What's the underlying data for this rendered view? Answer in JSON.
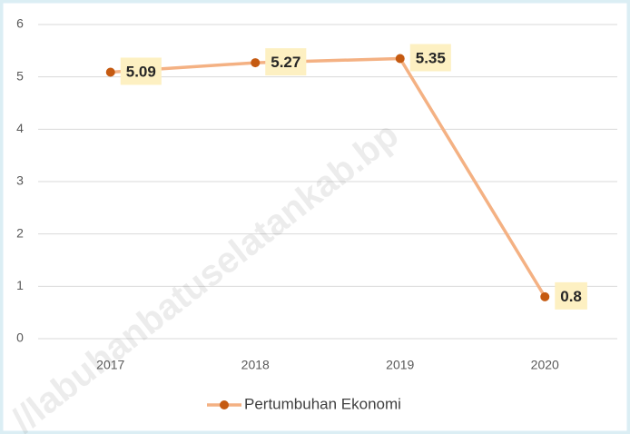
{
  "chart_data": {
    "type": "line",
    "categories": [
      "2017",
      "2018",
      "2019",
      "2020"
    ],
    "series": [
      {
        "name": "Pertumbuhan Ekonomi",
        "color": "#f4b183",
        "marker_color": "#c55a11",
        "values": [
          5.09,
          5.27,
          5.35,
          0.8
        ]
      }
    ],
    "ylim": [
      0,
      6
    ],
    "yticks": [
      0,
      1,
      2,
      3,
      4,
      5,
      6
    ],
    "grid": true,
    "legend": "bottom",
    "watermark": "//labuhanbatuselatankab.bp"
  }
}
